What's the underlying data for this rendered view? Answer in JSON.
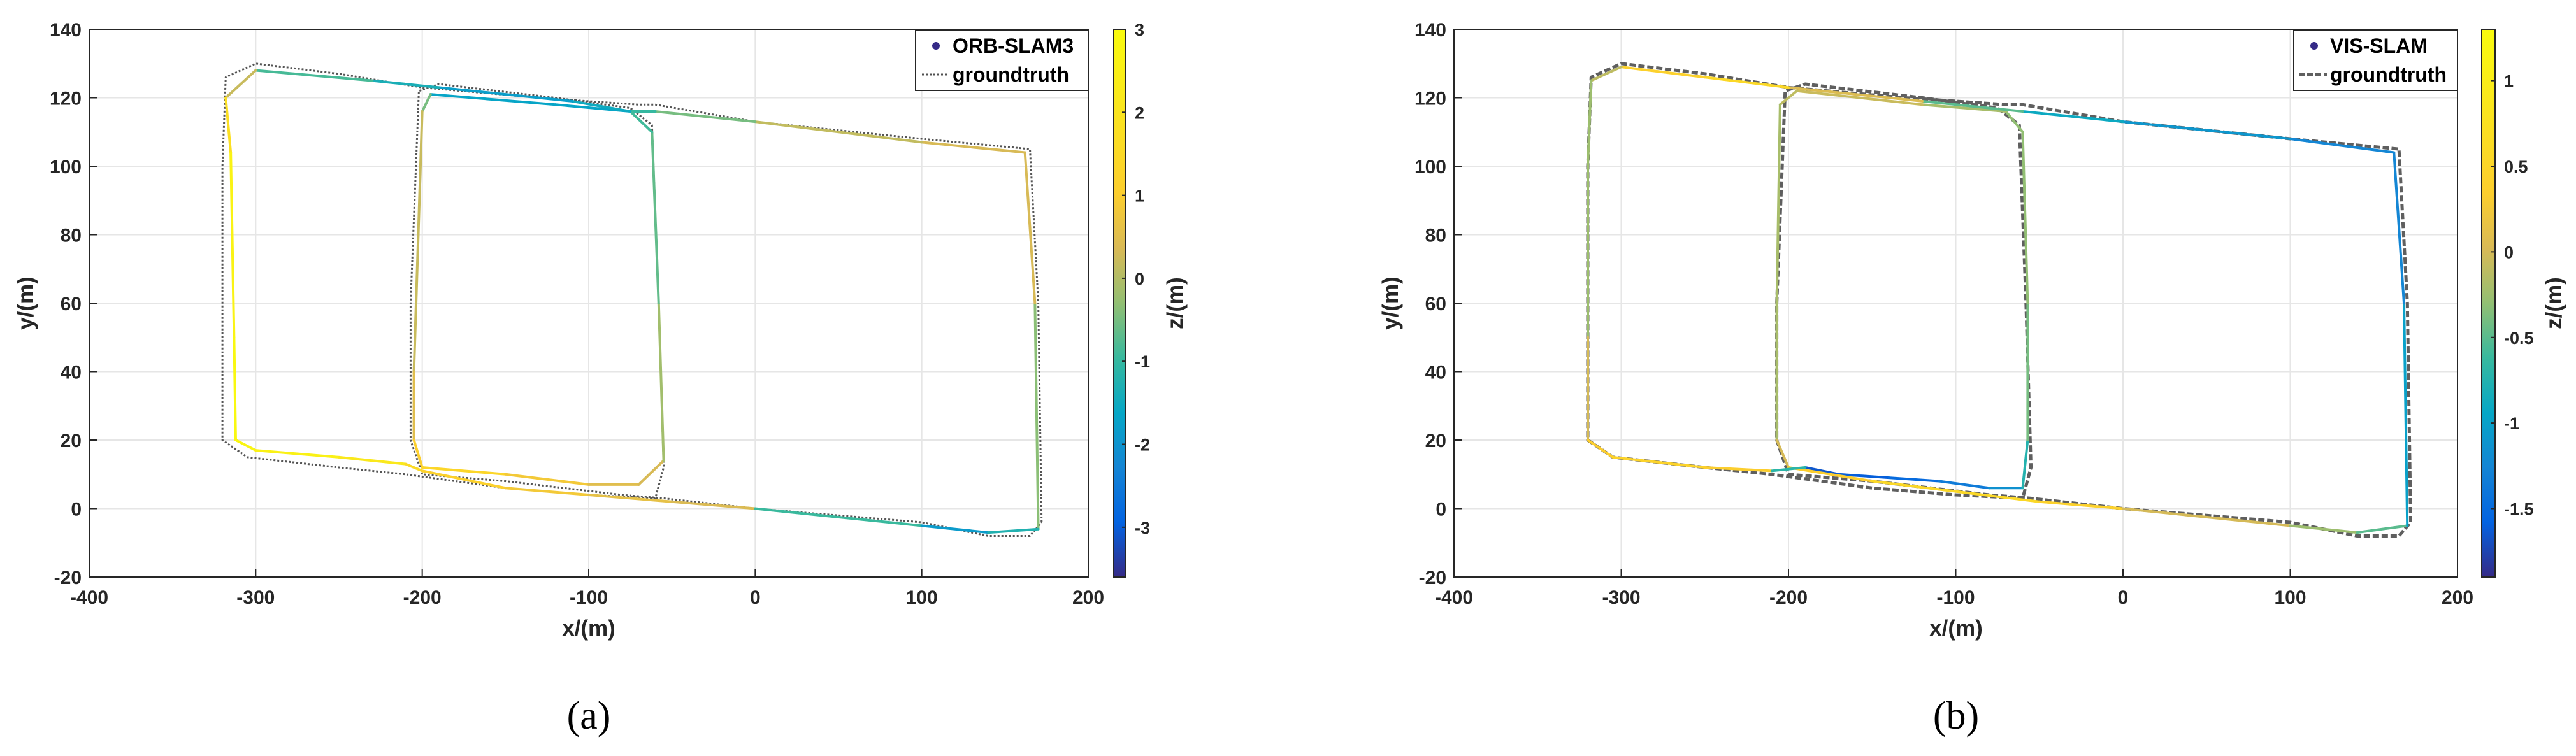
{
  "chart_data": [
    {
      "type": "line",
      "caption": "(a)",
      "xlabel": "x/(m)",
      "ylabel": "y/(m)",
      "xlim": [
        -400,
        200
      ],
      "ylim": [
        -20,
        140
      ],
      "xticks": [
        "-400",
        "-300",
        "-200",
        "-100",
        "0",
        "100",
        "200"
      ],
      "yticks": [
        "-20",
        "0",
        "20",
        "40",
        "60",
        "80",
        "100",
        "120",
        "140"
      ],
      "grid": true,
      "legend_position": "top-right",
      "colorbar": {
        "label": "z/(m)",
        "range": [
          -3.6,
          3
        ],
        "ticks": [
          "-3",
          "-2",
          "-1",
          "0",
          "1",
          "2",
          "3"
        ]
      },
      "series": [
        {
          "name": "ORB-SLAM3",
          "style": "points colored by z",
          "points": [
            [
              170,
              -6,
              -1
            ],
            [
              168,
              60,
              0.3
            ],
            [
              162,
              104,
              0.4
            ],
            [
              100,
              107,
              0.3
            ],
            [
              0,
              113,
              0
            ],
            [
              -60,
              116,
              -1
            ],
            [
              -75,
              116,
              -1
            ],
            [
              -120,
              118,
              -2.3
            ],
            [
              -195,
              121,
              -1
            ],
            [
              -200,
              116,
              0
            ],
            [
              -205,
              40,
              0.4
            ],
            [
              -205,
              20,
              0.6
            ],
            [
              -200,
              12,
              1.5
            ],
            [
              -150,
              10,
              1.2
            ],
            [
              -100,
              7,
              0.5
            ],
            [
              -70,
              7,
              0.5
            ],
            [
              -55,
              14,
              0.2
            ],
            [
              -58,
              60,
              -0.5
            ],
            [
              -62,
              110,
              -0.8
            ],
            [
              -75,
              116,
              -1
            ],
            [
              -110,
              119,
              -2
            ],
            [
              -190,
              123,
              -1.6
            ],
            [
              -230,
              125,
              -1.1
            ],
            [
              -300,
              128,
              -0.6
            ],
            [
              -318,
              120,
              1
            ],
            [
              -315,
              104,
              2.5
            ],
            [
              -313,
              50,
              2.8
            ],
            [
              -312,
              20,
              2.9
            ],
            [
              -300,
              17,
              2.6
            ],
            [
              -250,
              15,
              2.5
            ],
            [
              -210,
              13,
              1.8
            ],
            [
              -200,
              11,
              1.3
            ],
            [
              -150,
              6,
              1
            ],
            [
              -100,
              4,
              0.7
            ],
            [
              -50,
              2,
              0.5
            ],
            [
              0,
              0,
              0.3
            ],
            [
              100,
              -5,
              -2.2
            ],
            [
              140,
              -7,
              -1.5
            ],
            [
              170,
              -6,
              -1
            ]
          ]
        },
        {
          "name": "groundtruth",
          "style": "dotted line",
          "points": [
            [
              172,
              -4
            ],
            [
              170,
              60
            ],
            [
              165,
              105
            ],
            [
              100,
              108
            ],
            [
              0,
              113
            ],
            [
              -60,
              118
            ],
            [
              -70,
              118
            ],
            [
              -130,
              120
            ],
            [
              -200,
              123
            ],
            [
              -250,
              127
            ],
            [
              -300,
              130
            ],
            [
              -318,
              126
            ],
            [
              -320,
              100
            ],
            [
              -320,
              50
            ],
            [
              -320,
              20
            ],
            [
              -305,
              15
            ],
            [
              -250,
              12
            ],
            [
              -210,
              10
            ],
            [
              -150,
              6
            ],
            [
              -100,
              4
            ],
            [
              -60,
              3
            ],
            [
              -55,
              12
            ],
            [
              -58,
              60
            ],
            [
              -62,
              112
            ],
            [
              -75,
              117
            ],
            [
              -120,
              120
            ],
            [
              -190,
              124
            ],
            [
              -202,
              122
            ],
            [
              -207,
              60
            ],
            [
              -207,
              20
            ],
            [
              -200,
              10
            ],
            [
              -150,
              8
            ],
            [
              -80,
              4
            ],
            [
              -55,
              3
            ],
            [
              0,
              0
            ],
            [
              100,
              -4
            ],
            [
              140,
              -8
            ],
            [
              165,
              -8
            ],
            [
              172,
              -4
            ]
          ]
        }
      ]
    },
    {
      "type": "line",
      "caption": "(b)",
      "xlabel": "x/(m)",
      "ylabel": "y/(m)",
      "xlim": [
        -400,
        200
      ],
      "ylim": [
        -20,
        140
      ],
      "xticks": [
        "-400",
        "-300",
        "-200",
        "-100",
        "0",
        "100",
        "200"
      ],
      "yticks": [
        "-20",
        "0",
        "20",
        "40",
        "60",
        "80",
        "100",
        "120",
        "140"
      ],
      "grid": true,
      "legend_position": "top-right",
      "colorbar": {
        "label": "z/(m)",
        "range": [
          -1.9,
          1.3
        ],
        "ticks": [
          "-1.5",
          "-1",
          "-0.5",
          "0",
          "0.5",
          "1"
        ]
      },
      "series": [
        {
          "name": "VIS-SLAM",
          "style": "points colored by z",
          "points": [
            [
              -190,
              12,
              -1.7
            ],
            [
              -170,
              10,
              -1.6
            ],
            [
              -140,
              9,
              -1.6
            ],
            [
              -110,
              8,
              -1.4
            ],
            [
              -80,
              6,
              -1.3
            ],
            [
              -60,
              6,
              -1
            ],
            [
              -57,
              20,
              -0.5
            ],
            [
              -57,
              60,
              -0.3
            ],
            [
              -60,
              110,
              -0.3
            ],
            [
              -70,
              116,
              -0.3
            ],
            [
              -120,
              118,
              -0.1
            ],
            [
              -195,
              122,
              0
            ],
            [
              -205,
              118,
              -0.2
            ],
            [
              -207,
              60,
              -0.2
            ],
            [
              -207,
              20,
              -0.2
            ],
            [
              -200,
              12,
              0.2
            ],
            [
              -150,
              8,
              0.5
            ],
            [
              -100,
              5,
              0.6
            ],
            [
              -50,
              2,
              0.5
            ],
            [
              0,
              0,
              0.3
            ],
            [
              100,
              -5,
              -0.3
            ],
            [
              140,
              -7,
              -0.2
            ],
            [
              170,
              -5,
              -0.8
            ],
            [
              168,
              60,
              -1.2
            ],
            [
              162,
              104,
              -1.3
            ],
            [
              100,
              108,
              -1.2
            ],
            [
              0,
              113,
              -1
            ],
            [
              -60,
              116,
              -0.8
            ],
            [
              -120,
              119,
              -0.2
            ],
            [
              -200,
              123,
              0.3
            ],
            [
              -250,
              126,
              0.8
            ],
            [
              -300,
              129,
              0
            ],
            [
              -318,
              125,
              -0.2
            ],
            [
              -320,
              100,
              -0.3
            ],
            [
              -320,
              50,
              -0.2
            ],
            [
              -320,
              20,
              0.2
            ],
            [
              -305,
              15,
              0.5
            ],
            [
              -250,
              12,
              0.4
            ],
            [
              -210,
              11,
              0.3
            ],
            [
              -190,
              12,
              -1.7
            ]
          ]
        },
        {
          "name": "groundtruth",
          "style": "dashed line",
          "points": [
            [
              172,
              -4
            ],
            [
              170,
              60
            ],
            [
              165,
              105
            ],
            [
              100,
              108
            ],
            [
              0,
              113
            ],
            [
              -60,
              118
            ],
            [
              -70,
              118
            ],
            [
              -130,
              120
            ],
            [
              -200,
              123
            ],
            [
              -250,
              127
            ],
            [
              -300,
              130
            ],
            [
              -318,
              126
            ],
            [
              -320,
              100
            ],
            [
              -320,
              50
            ],
            [
              -320,
              20
            ],
            [
              -305,
              15
            ],
            [
              -250,
              12
            ],
            [
              -210,
              10
            ],
            [
              -150,
              6
            ],
            [
              -100,
              4
            ],
            [
              -60,
              3
            ],
            [
              -55,
              12
            ],
            [
              -58,
              60
            ],
            [
              -62,
              112
            ],
            [
              -75,
              117
            ],
            [
              -120,
              120
            ],
            [
              -190,
              124
            ],
            [
              -202,
              122
            ],
            [
              -207,
              60
            ],
            [
              -207,
              20
            ],
            [
              -200,
              10
            ],
            [
              -150,
              8
            ],
            [
              -80,
              4
            ],
            [
              -55,
              3
            ],
            [
              0,
              0
            ],
            [
              100,
              -4
            ],
            [
              140,
              -8
            ],
            [
              165,
              -8
            ],
            [
              172,
              -4
            ]
          ]
        }
      ]
    }
  ]
}
